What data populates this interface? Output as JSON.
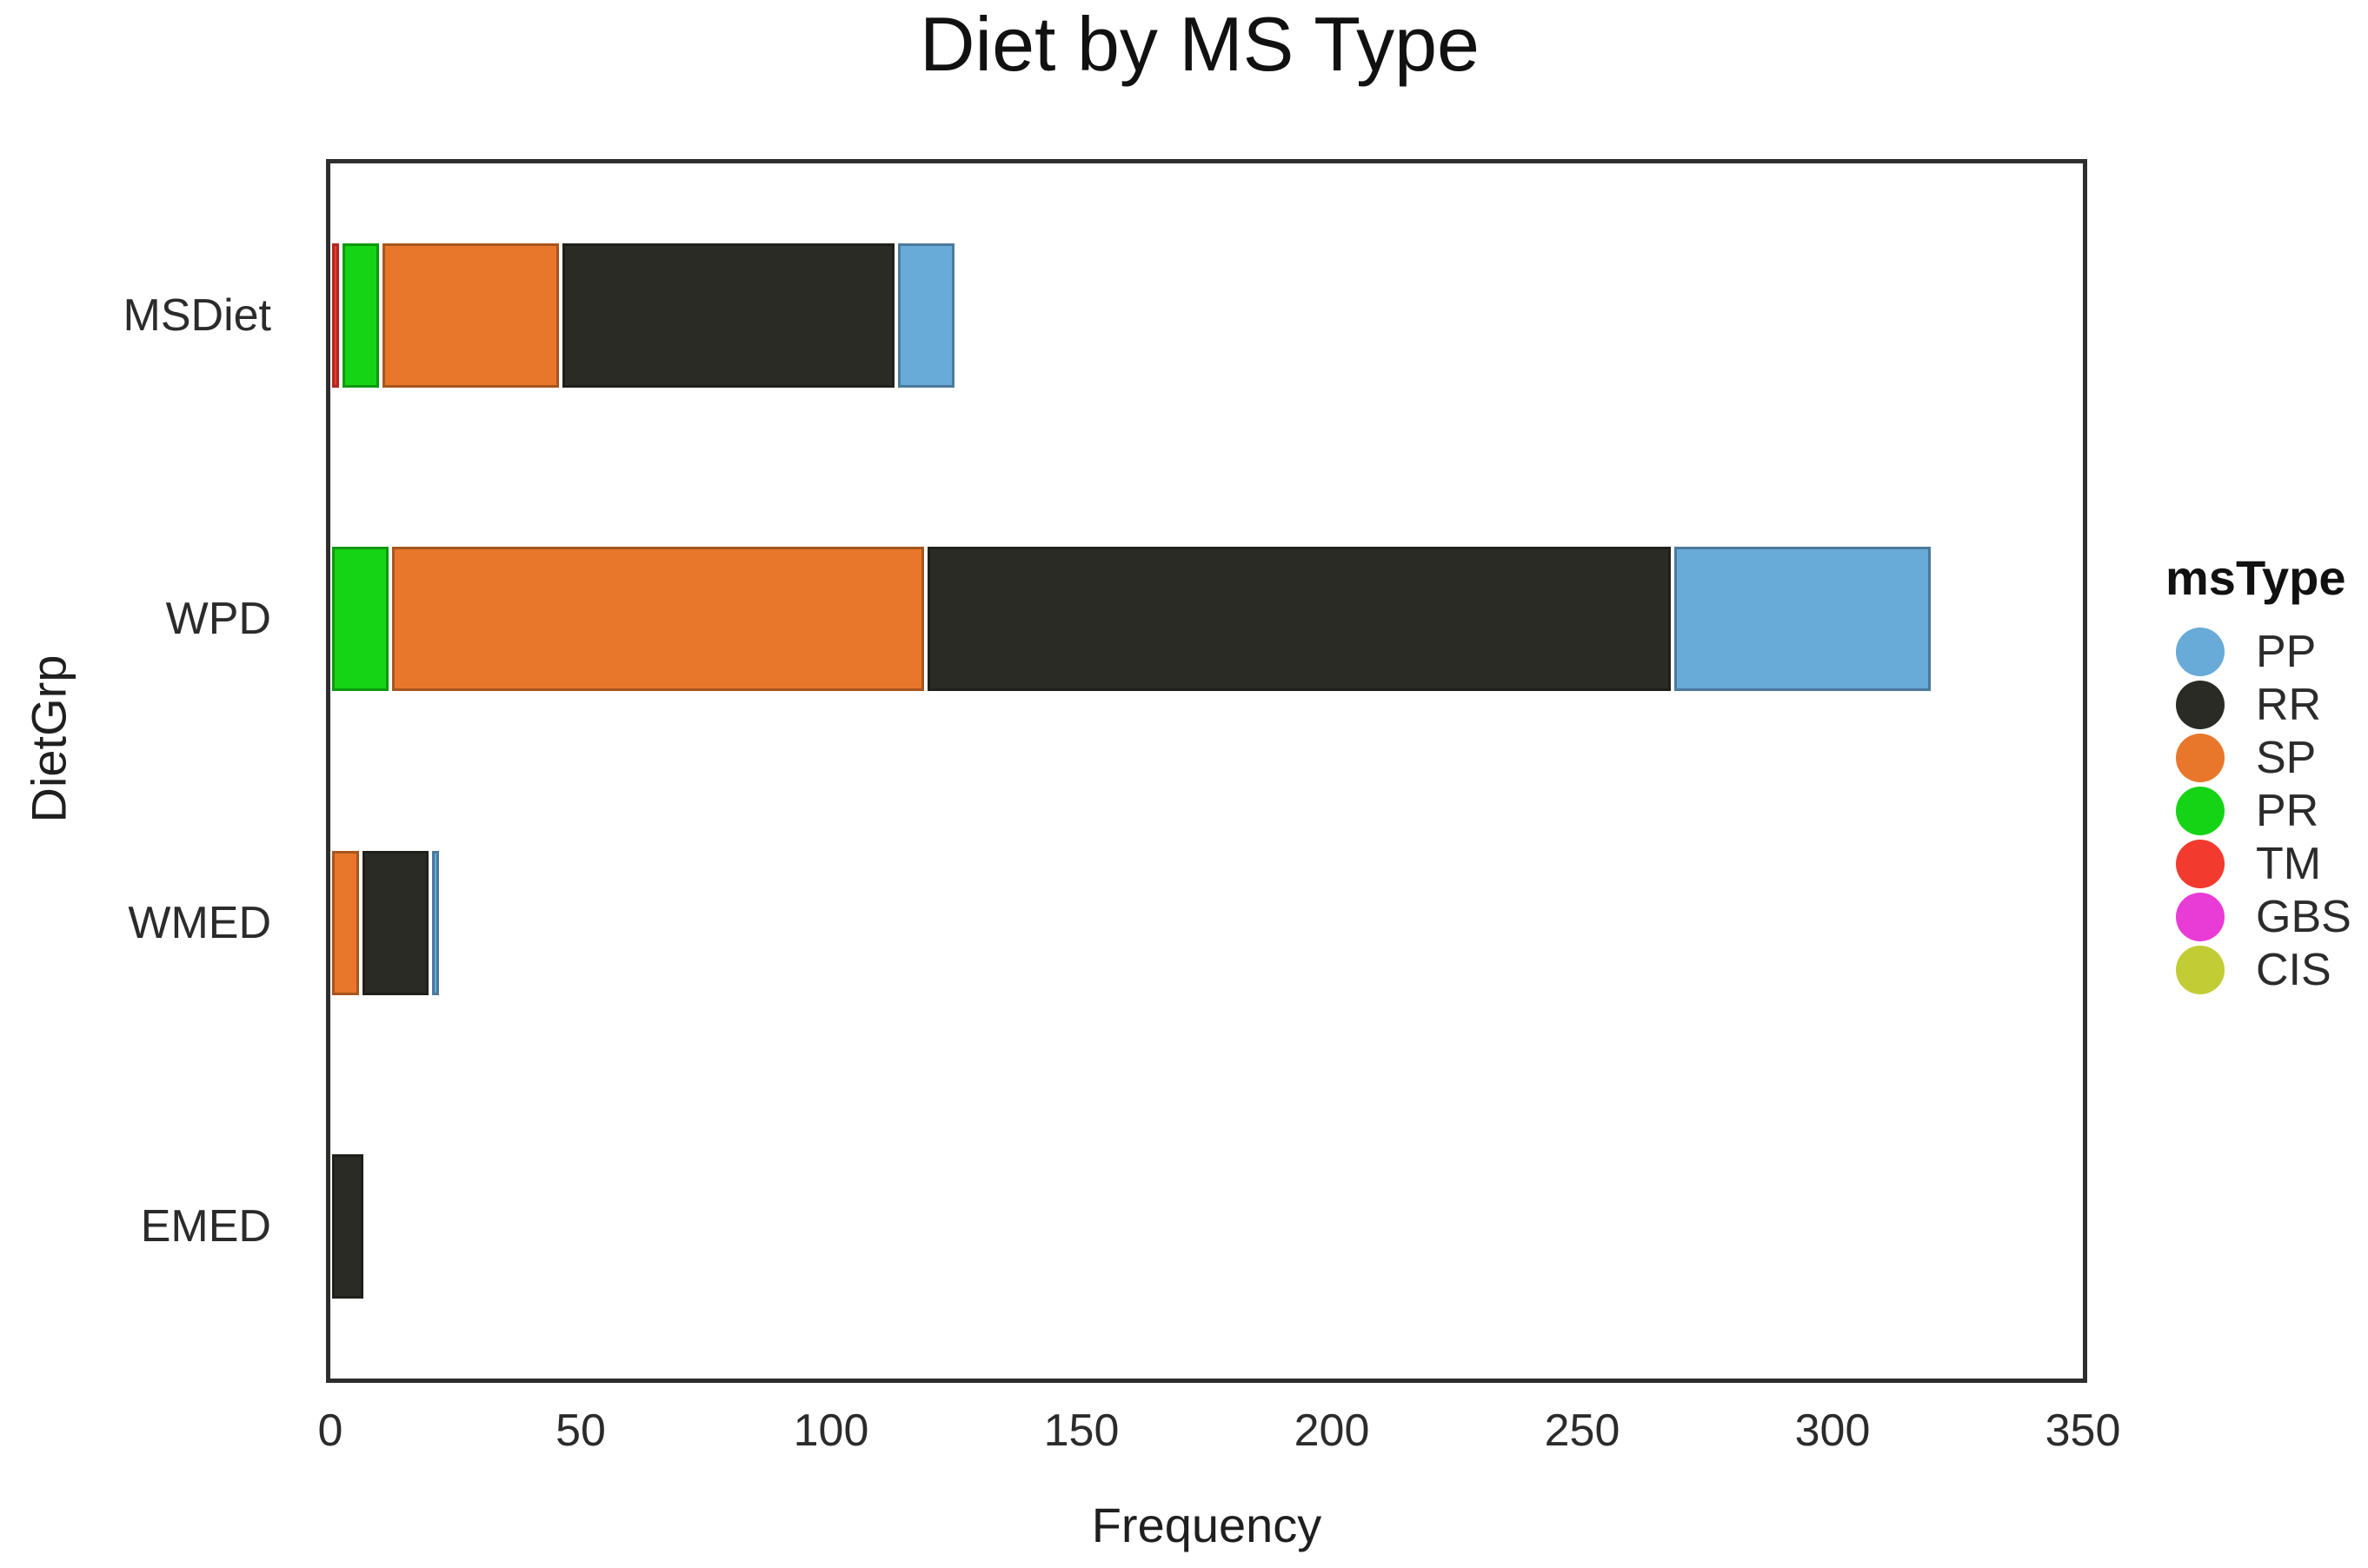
{
  "chart_data": {
    "type": "bar",
    "orientation": "horizontal",
    "stacked": true,
    "title": "Diet by MS Type",
    "xlabel": "Frequency",
    "ylabel": "DietGrp",
    "categories": [
      "MSDiet",
      "WPD",
      "WMED",
      "EMED"
    ],
    "xlim": [
      0,
      350
    ],
    "xticks": [
      0,
      50,
      100,
      150,
      200,
      250,
      300,
      350
    ],
    "grid": false,
    "legend": {
      "title": "msType",
      "position": "right",
      "entries": [
        {
          "label": "PP",
          "color": "#68AAD8"
        },
        {
          "label": "RR",
          "color": "#2B2B26"
        },
        {
          "label": "SP",
          "color": "#E8772B"
        },
        {
          "label": "PR",
          "color": "#15D315"
        },
        {
          "label": "TM",
          "color": "#F23A2E"
        },
        {
          "label": "GBS",
          "color": "#E93BD5"
        },
        {
          "label": "CIS",
          "color": "#C2CC34"
        }
      ]
    },
    "stack_order": [
      "TM",
      "PR",
      "SP",
      "RR",
      "PP",
      "GBS",
      "CIS"
    ],
    "series": [
      {
        "name": "TM",
        "color": "#F23A2E",
        "values": [
          2,
          0,
          0,
          0
        ]
      },
      {
        "name": "PR",
        "color": "#15D315",
        "values": [
          8,
          12,
          0,
          0
        ]
      },
      {
        "name": "SP",
        "color": "#E8772B",
        "values": [
          36,
          107,
          6,
          0
        ]
      },
      {
        "name": "RR",
        "color": "#2B2B26",
        "values": [
          67,
          149,
          14,
          7
        ]
      },
      {
        "name": "PP",
        "color": "#68AAD8",
        "values": [
          12,
          52,
          2,
          0
        ]
      },
      {
        "name": "GBS",
        "color": "#E93BD5",
        "values": [
          0,
          0,
          0,
          0
        ]
      },
      {
        "name": "CIS",
        "color": "#C2CC34",
        "values": [
          0,
          0,
          0,
          0
        ]
      }
    ]
  }
}
